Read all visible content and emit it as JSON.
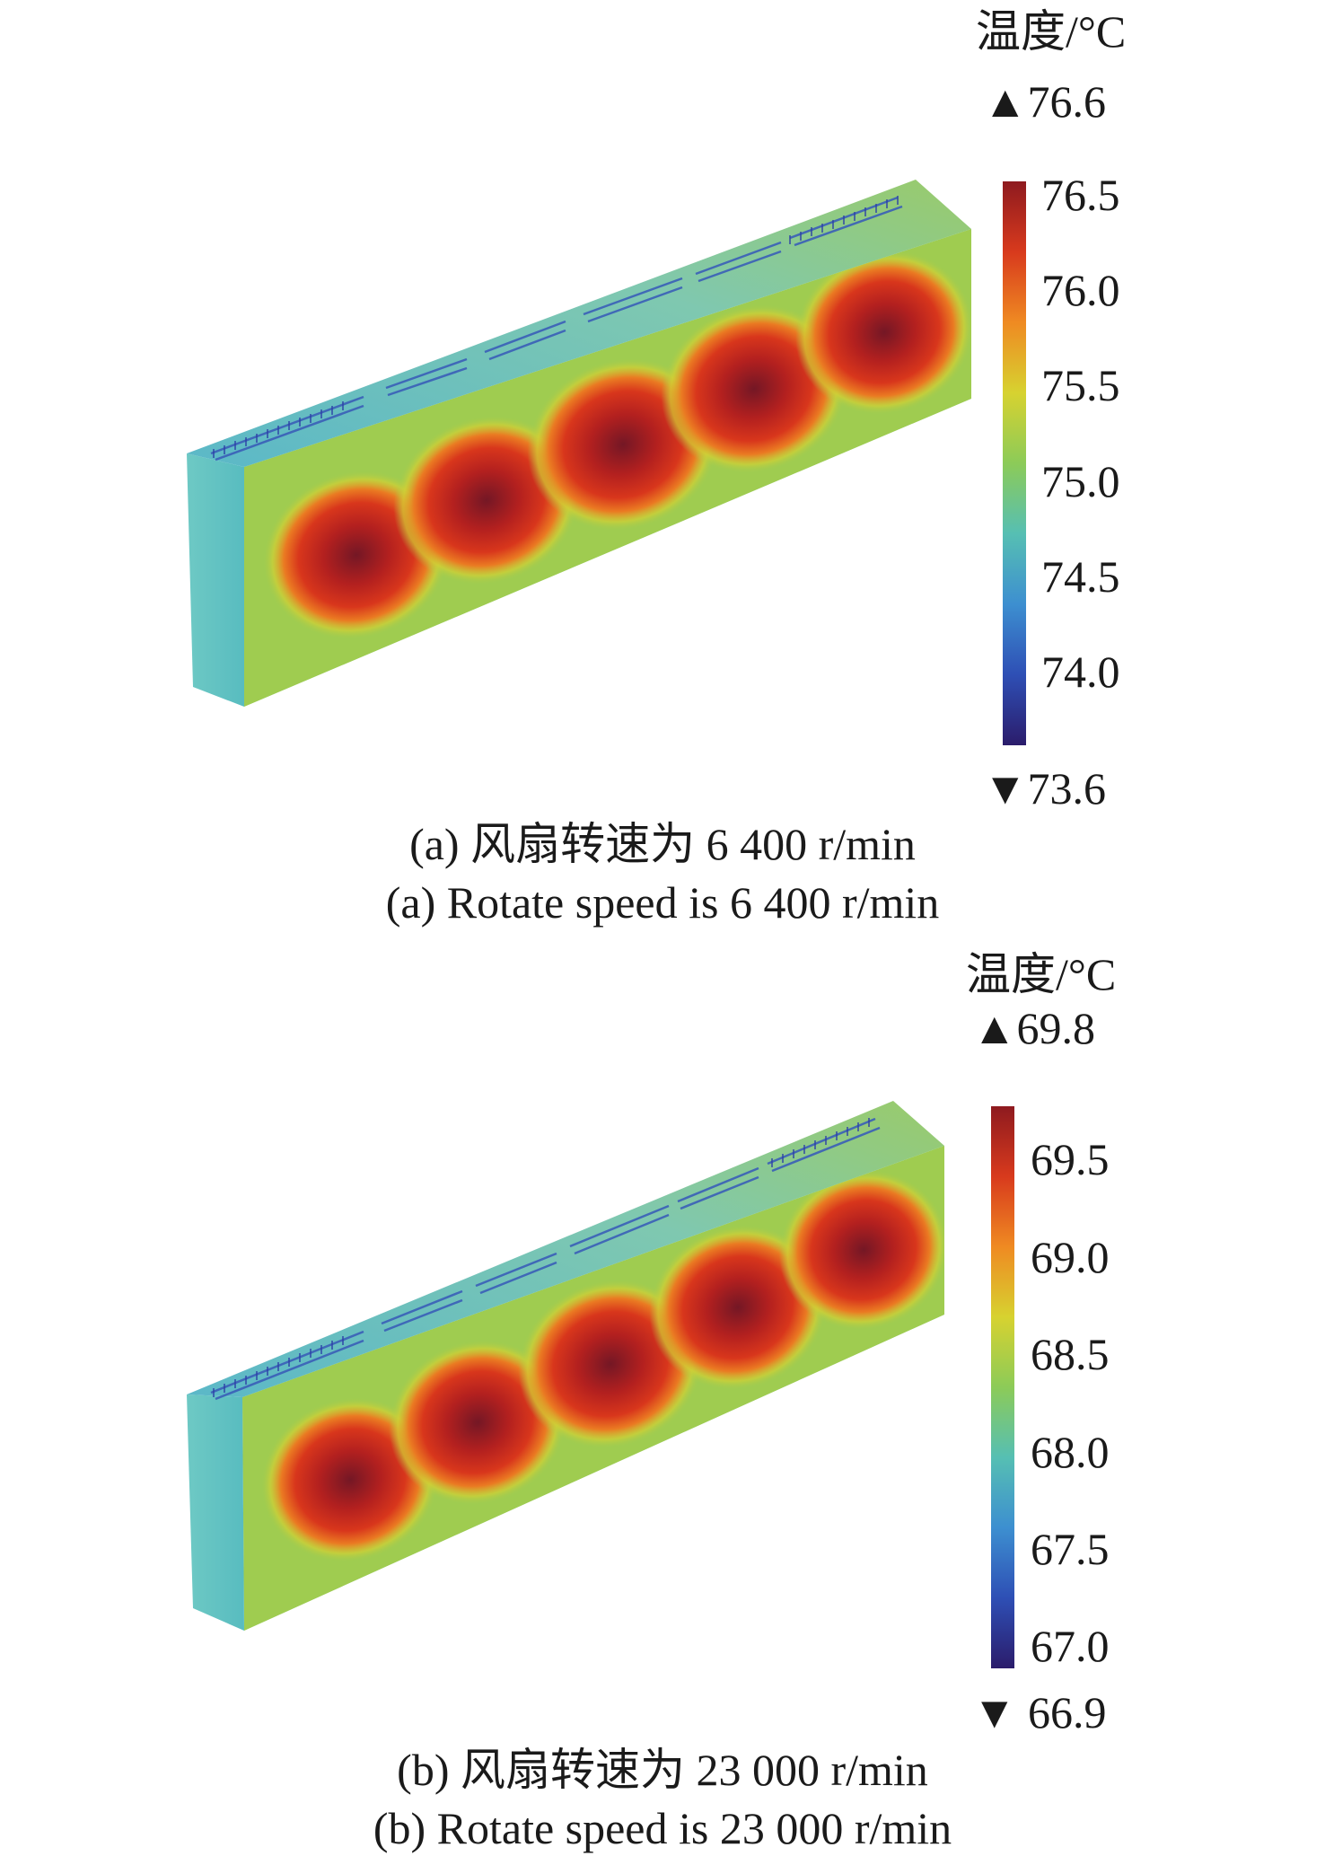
{
  "panels": [
    {
      "unit_label": "温度/°C",
      "max_marker": "▲76.6",
      "min_marker": "▼73.6",
      "max_value": 76.6,
      "min_value": 73.6,
      "colorbar_ticks": [
        "76.5",
        "76.0",
        "75.5",
        "75.0",
        "74.5",
        "74.0"
      ],
      "caption_cn": "(a) 风扇转速为 6 400 r/min",
      "caption_en": "(a) Rotate speed is 6 400 r/min"
    },
    {
      "unit_label": "温度/°C",
      "max_marker": "▲69.8",
      "min_marker": "▼ 66.9",
      "max_value": 69.8,
      "min_value": 66.9,
      "colorbar_ticks": [
        "69.5",
        "69.0",
        "68.5",
        "68.0",
        "67.5",
        "67.0"
      ],
      "caption_cn": "(b) 风扇转速为 23 000 r/min",
      "caption_en": "(b) Rotate speed is 23 000 r/min"
    }
  ],
  "colormap": [
    "#2b1c6b",
    "#2e4fb5",
    "#3d8fd0",
    "#56bfb3",
    "#8ccb58",
    "#d7d230",
    "#ef8a22",
    "#d83a1d",
    "#8e1a1f"
  ]
}
